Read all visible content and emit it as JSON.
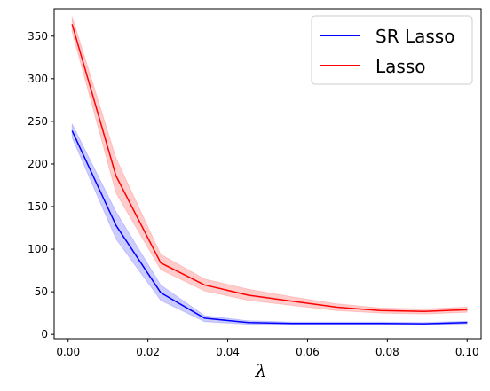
{
  "chart_data": {
    "type": "line",
    "title": "",
    "xlabel": "λ",
    "ylabel": "",
    "xlim": [
      -0.0035,
      0.1035
    ],
    "ylim": [
      -5,
      382
    ],
    "x_ticks": [
      0.0,
      0.02,
      0.04,
      0.06,
      0.08,
      0.1
    ],
    "x_tick_labels": [
      "0.00",
      "0.02",
      "0.04",
      "0.06",
      "0.08",
      "0.10"
    ],
    "y_ticks": [
      0,
      50,
      100,
      150,
      200,
      250,
      300,
      350
    ],
    "y_tick_labels": [
      "0",
      "50",
      "100",
      "150",
      "200",
      "250",
      "300",
      "350"
    ],
    "grid": false,
    "legend_position": "top-right",
    "x": [
      0.001,
      0.012,
      0.0232,
      0.0342,
      0.0452,
      0.0562,
      0.0672,
      0.0782,
      0.0892,
      0.1
    ],
    "series": [
      {
        "name": "SR Lasso",
        "color": "#0000ff",
        "values": [
          239,
          128,
          49,
          19,
          14,
          13,
          13,
          13,
          12.5,
          14
        ],
        "lower": [
          231,
          112,
          40,
          15,
          12,
          11.5,
          11.5,
          11.5,
          11,
          12.5
        ],
        "upper": [
          247,
          144,
          58,
          22,
          16,
          14.5,
          14.5,
          14.5,
          14,
          15.5
        ]
      },
      {
        "name": "Lasso",
        "color": "#ff0000",
        "values": [
          364,
          186,
          84,
          58,
          46,
          39,
          32,
          28,
          27,
          29
        ],
        "lower": [
          355,
          166,
          76,
          51,
          40,
          34,
          28,
          25,
          24,
          26
        ],
        "upper": [
          373,
          207,
          94,
          65,
          53,
          44,
          36,
          31,
          30,
          32
        ]
      }
    ]
  }
}
